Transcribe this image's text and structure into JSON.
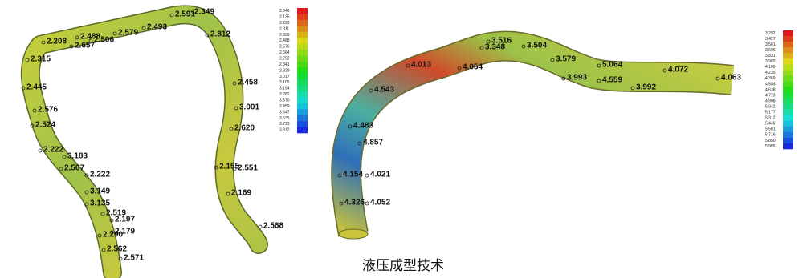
{
  "left_tube": {
    "labels": [
      "2.591",
      "2.349",
      "2.812",
      "2.493",
      "2.579",
      "2.488",
      "2.506",
      "2.657",
      "2.208",
      "2.315",
      "2.445",
      "2.458",
      "3.001",
      "2.576",
      "2.524",
      "2.620",
      "2.222",
      "3.183",
      "2.567",
      "2.222",
      "2.155",
      "2.551",
      "3.149",
      "2.169",
      "3.135",
      "2.519",
      "2.197",
      "2.179",
      "2.290",
      "2.568",
      "2.562",
      "2.571"
    ]
  },
  "left_legend": {
    "values": [
      "2.046",
      "2.135",
      "2.223",
      "2.311",
      "2.399",
      "2.488",
      "2.576",
      "2.664",
      "2.752",
      "2.841",
      "2.929",
      "3.017",
      "3.105",
      "3.194",
      "3.282",
      "3.370",
      "3.459",
      "3.547",
      "3.635",
      "3.723",
      "3.812"
    ]
  },
  "right_tube": {
    "labels": [
      "3.516",
      "3.348",
      "3.504",
      "3.579",
      "5.064",
      "4.072",
      "4.063",
      "4.013",
      "4.054",
      "3.993",
      "4.559",
      "3.992",
      "4.543",
      "4.483",
      "4.857",
      "4.154",
      "4.021",
      "4.326",
      "4.052"
    ]
  },
  "right_legend": {
    "values": [
      "3.292",
      "3.427",
      "3.561",
      "3.696",
      "3.831",
      "3.965",
      "4.100",
      "4.235",
      "4.369",
      "4.504",
      "4.638",
      "4.773",
      "4.908",
      "5.042",
      "5.177",
      "5.312",
      "5.446",
      "5.581",
      "5.716",
      "5.850",
      "5.985"
    ]
  },
  "caption": "液压成型技术"
}
